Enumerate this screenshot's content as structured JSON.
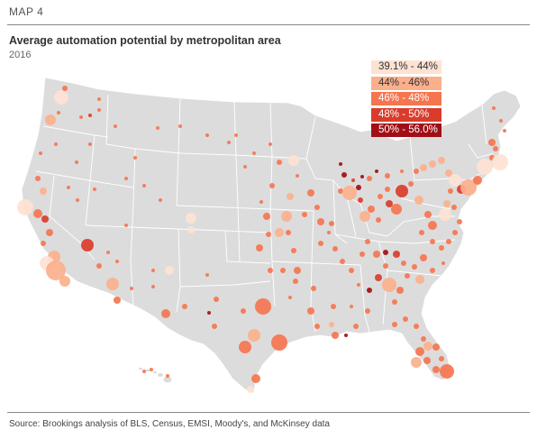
{
  "header": {
    "map_number": "MAP 4",
    "title": "Average automation potential by metropolitan area",
    "year": "2016"
  },
  "legend": [
    {
      "label": "39.1% - 44%",
      "color": "#fde2d3"
    },
    {
      "label": "44% - 46%",
      "color": "#fbb08c"
    },
    {
      "label": "46% - 48%",
      "color": "#f5754f"
    },
    {
      "label": "48% - 50%",
      "color": "#d93c2b"
    },
    {
      "label": "50% - 56.0%",
      "color": "#a10e16"
    }
  ],
  "source": "Source: Brookings analysis of BLS, Census, EMSI, Moody's, and McKinsey data",
  "colors": {
    "land": "#dcdcdc",
    "borders": "#ffffff"
  }
}
